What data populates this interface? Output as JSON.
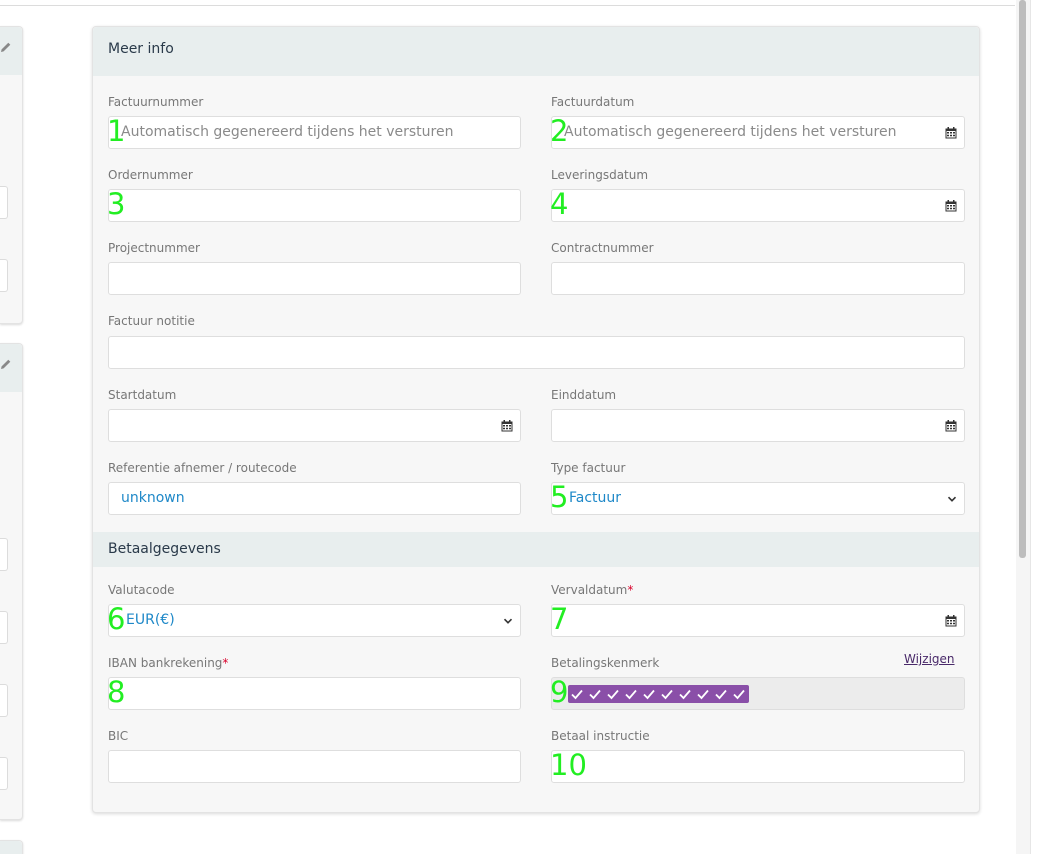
{
  "panel": {
    "title": "Meer info",
    "fields": {
      "factuurnummer": {
        "label": "Factuurnummer",
        "placeholder": "Automatisch gegenereerd tijdens het versturen",
        "badge": "1"
      },
      "factuurdatum": {
        "label": "Factuurdatum",
        "placeholder": "Automatisch gegenereerd tijdens het versturen",
        "badge": "2"
      },
      "ordernummer": {
        "label": "Ordernummer",
        "value": "",
        "badge": "3"
      },
      "leveringsdatum": {
        "label": "Leveringsdatum",
        "value": "",
        "badge": "4"
      },
      "projectnummer": {
        "label": "Projectnummer",
        "value": ""
      },
      "contractnummer": {
        "label": "Contractnummer",
        "value": ""
      },
      "factuur_notitie": {
        "label": "Factuur notitie",
        "value": ""
      },
      "startdatum": {
        "label": "Startdatum",
        "value": ""
      },
      "einddatum": {
        "label": "Einddatum",
        "value": ""
      },
      "referentie": {
        "label": "Referentie afnemer / routecode",
        "value": "unknown"
      },
      "type_factuur": {
        "label": "Type factuur",
        "value": "Factuur",
        "badge": "5"
      }
    }
  },
  "payment": {
    "title": "Betaalgegevens",
    "fields": {
      "valutacode": {
        "label": "Valutacode",
        "value": "EUR(€)",
        "badge": "6"
      },
      "vervaldatum": {
        "label": "Vervaldatum",
        "required_mark": "*",
        "value": "",
        "badge": "7"
      },
      "iban": {
        "label": "IBAN bankrekening",
        "required_mark": "*",
        "value": "",
        "badge": "8"
      },
      "betalingskenmerk": {
        "label": "Betalingskenmerk",
        "change_link": "Wijzigen",
        "badge": "9"
      },
      "bic": {
        "label": "BIC",
        "value": ""
      },
      "betaal_instructie": {
        "label": "Betaal instructie",
        "value": "",
        "badge": "10"
      }
    }
  },
  "colors": {
    "accent_value": "#1e88c8",
    "badge": "#22ee22",
    "header_bg": "#e8eeee",
    "kenmerk_fill": "#8a4fa8"
  }
}
